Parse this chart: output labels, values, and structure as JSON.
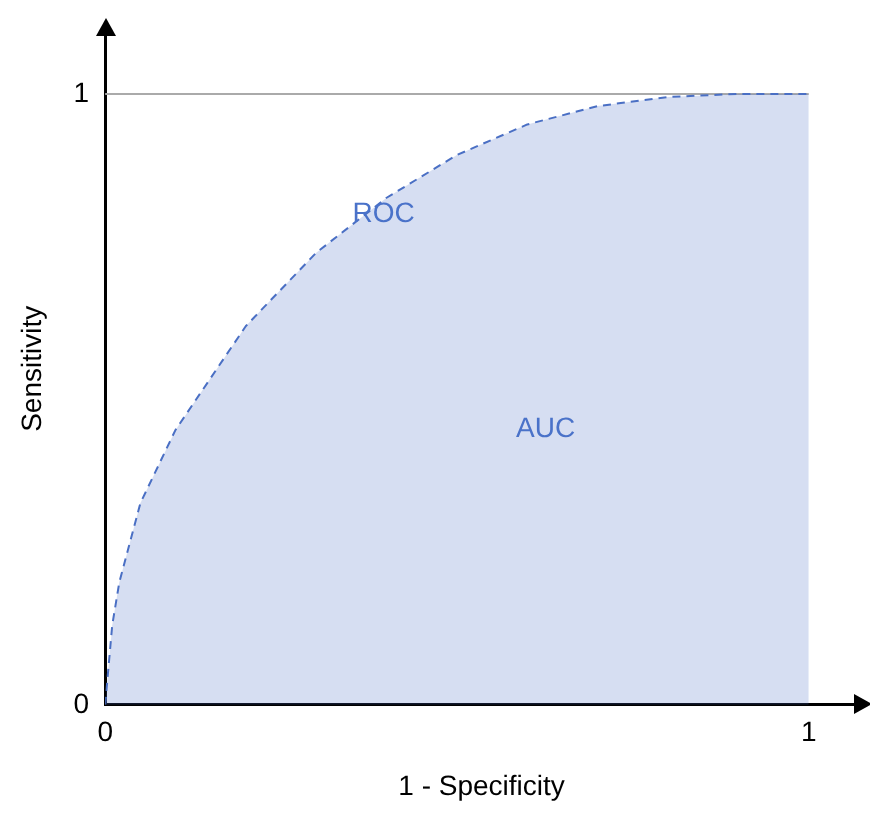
{
  "chart_data": {
    "type": "area",
    "xlabel": "1 - Specificity",
    "ylabel": "Sensitivity",
    "x": [
      0,
      0.01,
      0.02,
      0.05,
      0.1,
      0.2,
      0.3,
      0.4,
      0.5,
      0.6,
      0.7,
      0.8,
      0.9,
      1
    ],
    "series": [
      {
        "color": "#4a6fc4",
        "values": [
          0,
          0.13,
          0.2,
          0.33,
          0.45,
          0.62,
          0.74,
          0.83,
          0.9,
          0.95,
          0.98,
          0.995,
          1,
          1
        ]
      }
    ],
    "line_style": "dashed",
    "marker": "none",
    "grid": false,
    "legend": false,
    "xlim": [
      0,
      1.07
    ],
    "ylim": [
      0,
      1.1
    ],
    "xticks": [
      0,
      1
    ],
    "yticks": [
      0,
      1
    ],
    "ref_lines": [
      {
        "axis": "y",
        "value": 1,
        "color": "#aaaaaa"
      }
    ],
    "annotations": [
      "ROC",
      "AUC"
    ]
  }
}
